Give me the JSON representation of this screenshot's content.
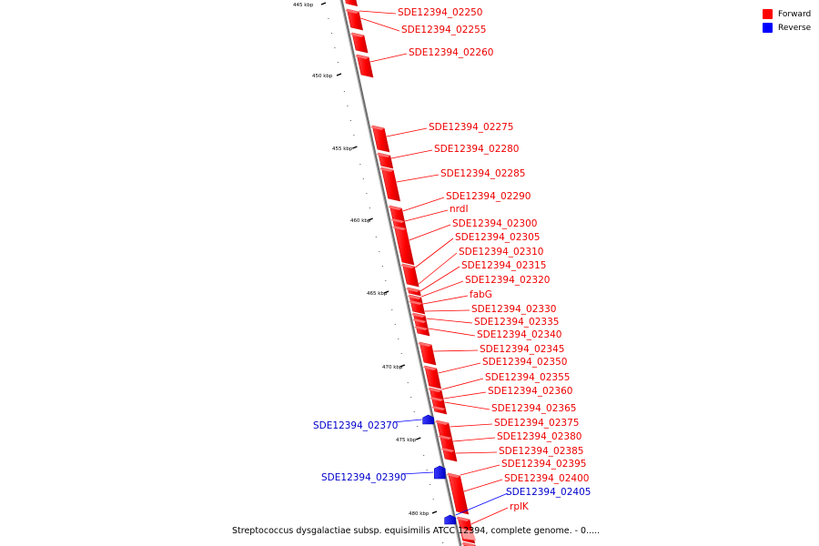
{
  "legend": [
    {
      "label": "Forward",
      "color": "#ff0000"
    },
    {
      "label": "Reverse",
      "color": "#0000ff"
    }
  ],
  "caption": "Streptococcus dysgalactiae subsp. equisimilis ATCC 12394, complete genome. - 0.....",
  "scale_ticks": [
    "445 kbp",
    "450 kbp",
    "455 kbp",
    "460 kbp",
    "465 kbp",
    "470 kbp",
    "475 kbp",
    "480 kbp"
  ],
  "forward_genes": [
    "SDE12394_02250",
    "SDE12394_02255",
    "SDE12394_02260",
    "SDE12394_02275",
    "SDE12394_02280",
    "SDE12394_02285",
    "SDE12394_02290",
    "nrdI",
    "SDE12394_02300",
    "SDE12394_02305",
    "SDE12394_02310",
    "SDE12394_02315",
    "SDE12394_02320",
    "fabG",
    "SDE12394_02330",
    "SDE12394_02335",
    "SDE12394_02340",
    "SDE12394_02345",
    "SDE12394_02350",
    "SDE12394_02355",
    "SDE12394_02360",
    "SDE12394_02365",
    "SDE12394_02375",
    "SDE12394_02380",
    "SDE12394_02385",
    "SDE12394_02395",
    "SDE12394_02400",
    "rplK"
  ],
  "reverse_genes": [
    "SDE12394_02370",
    "SDE12394_02390",
    "SDE12394_02405"
  ]
}
